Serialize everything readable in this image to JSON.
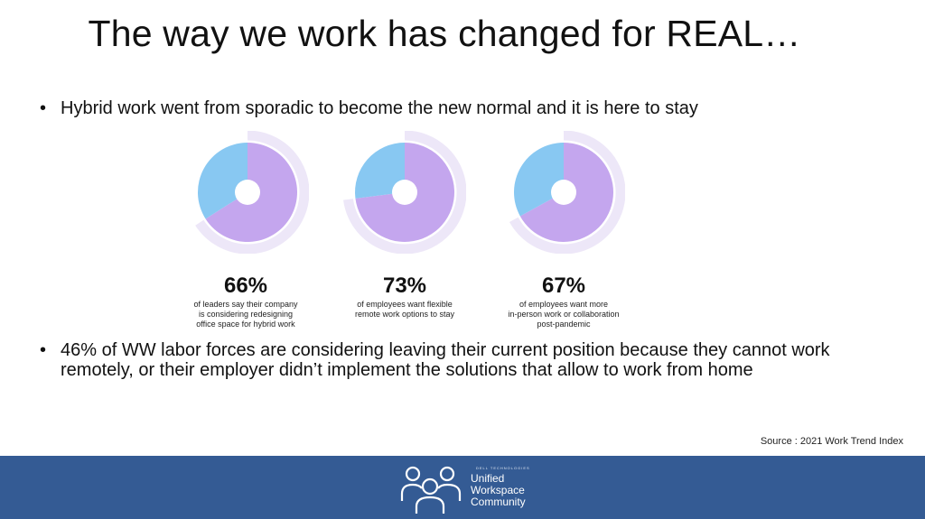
{
  "title": "The way we work has changed for REAL…",
  "bullet_symbol": "•",
  "bullet1": "Hybrid work went from sporadic to become the new normal and it is here to stay",
  "chart_data": [
    {
      "type": "pie",
      "values": [
        66,
        34
      ],
      "value_label": "66%",
      "description": [
        "of leaders say their company",
        "is considering redesigning",
        "office space for hybrid work"
      ],
      "colors": [
        "#c4a6ee",
        "#88c8f2"
      ]
    },
    {
      "type": "pie",
      "values": [
        73,
        27
      ],
      "value_label": "73%",
      "description": [
        "of employees want flexible",
        "remote work options to stay"
      ],
      "colors": [
        "#c4a6ee",
        "#88c8f2"
      ]
    },
    {
      "type": "pie",
      "values": [
        67,
        33
      ],
      "value_label": "67%",
      "description": [
        "of employees want more",
        "in-person work or collaboration",
        "post-pandemic"
      ],
      "colors": [
        "#c4a6ee",
        "#88c8f2"
      ]
    }
  ],
  "bullet2": "46% of WW labor forces are considering leaving their current position because they cannot work remotely, or their employer didn’t implement the solutions that allow to work from home",
  "source": "Source : 2021 Work Trend Index",
  "footer": {
    "logo_small": "DELL TECHNOLOGIES",
    "logo_lines": [
      "Unified",
      "Workspace",
      "Community"
    ],
    "background": "#345b94"
  }
}
